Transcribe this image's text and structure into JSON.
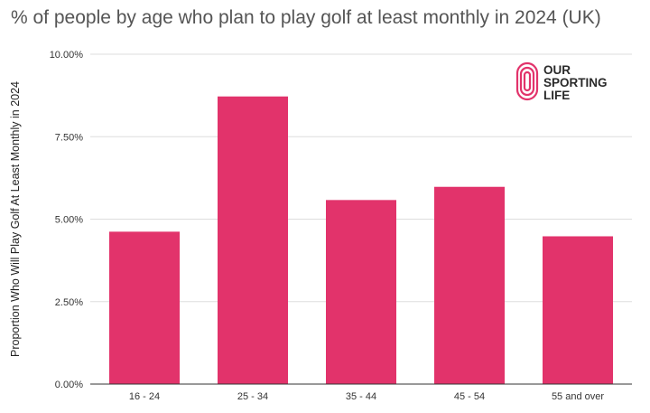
{
  "chart_data": {
    "type": "bar",
    "title": "% of people by age who plan to play golf at least monthly in 2024 (UK)",
    "xlabel": "",
    "ylabel": "Proportion Who Will Play Golf At Least Monthly in 2024",
    "categories": [
      "16 - 24",
      "25 - 34",
      "35 - 44",
      "45 - 54",
      "55 and over"
    ],
    "values": [
      4.62,
      8.72,
      5.58,
      5.98,
      4.48
    ],
    "ylim": [
      0,
      10
    ],
    "yticks": [
      0,
      2.5,
      5,
      7.5,
      10
    ],
    "ytick_labels": [
      "0.00%",
      "2.50%",
      "5.00%",
      "7.50%",
      "10.00%"
    ],
    "bar_color": "#e2336b",
    "grid": true
  },
  "logo": {
    "lines": [
      "OUR",
      "SPORTING",
      "LIFE"
    ],
    "color": "#e2336b"
  }
}
